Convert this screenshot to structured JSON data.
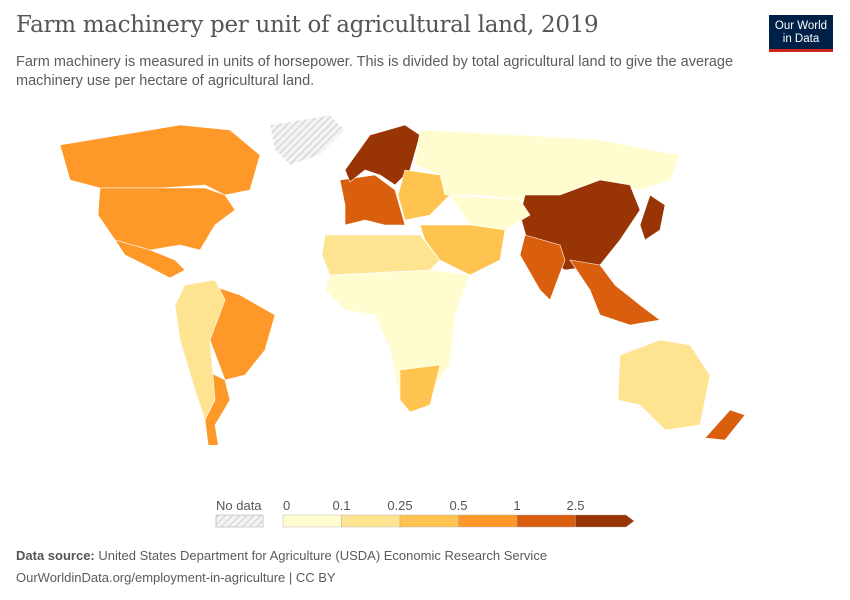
{
  "title": "Farm machinery per unit of agricultural land, 2019",
  "subtitle": "Farm machinery is measured in units of horsepower. This is divided by total agricultural land to give the average machinery use per hectare of agricultural land.",
  "logo": {
    "line1": "Our World",
    "line2": "in Data",
    "bg": "#002147",
    "accent": "#ce261e"
  },
  "legend": {
    "no_data": "No data",
    "bins": [
      "0",
      "0.1",
      "0.25",
      "0.5",
      "1",
      "2.5"
    ],
    "colors": [
      "#fffdd0",
      "#fee391",
      "#fec44f",
      "#fe9929",
      "#d95f0e",
      "#993404"
    ]
  },
  "footer": {
    "source_label": "Data source:",
    "source": "United States Department for Agriculture (USDA) Economic Research Service",
    "url": "OurWorldinData.org/employment-in-agriculture | CC BY"
  },
  "chart_data": {
    "type": "choropleth",
    "title": "Farm machinery per unit of agricultural land, 2019",
    "bins": [
      0,
      0.1,
      0.25,
      0.5,
      1,
      2.5
    ],
    "regions": [
      {
        "name": "Canada",
        "bin": 3
      },
      {
        "name": "United States",
        "bin": 3
      },
      {
        "name": "Mexico",
        "bin": 3
      },
      {
        "name": "Greenland",
        "bin": null
      },
      {
        "name": "Brazil",
        "bin": 3
      },
      {
        "name": "Argentina",
        "bin": 3
      },
      {
        "name": "Rest of South America",
        "bin": 1
      },
      {
        "name": "Western Europe",
        "bin": 4
      },
      {
        "name": "Northern Europe",
        "bin": 5
      },
      {
        "name": "Eastern Europe",
        "bin": 2
      },
      {
        "name": "Russia",
        "bin": 0
      },
      {
        "name": "China",
        "bin": 5
      },
      {
        "name": "Japan",
        "bin": 5
      },
      {
        "name": "India",
        "bin": 4
      },
      {
        "name": "Southeast Asia",
        "bin": 4
      },
      {
        "name": "Central Asia",
        "bin": 0
      },
      {
        "name": "Middle East",
        "bin": 2
      },
      {
        "name": "North Africa",
        "bin": 1
      },
      {
        "name": "Sub-Saharan Africa",
        "bin": 0
      },
      {
        "name": "South Africa",
        "bin": 2
      },
      {
        "name": "Australia",
        "bin": 1
      },
      {
        "name": "New Zealand",
        "bin": 4
      }
    ]
  }
}
